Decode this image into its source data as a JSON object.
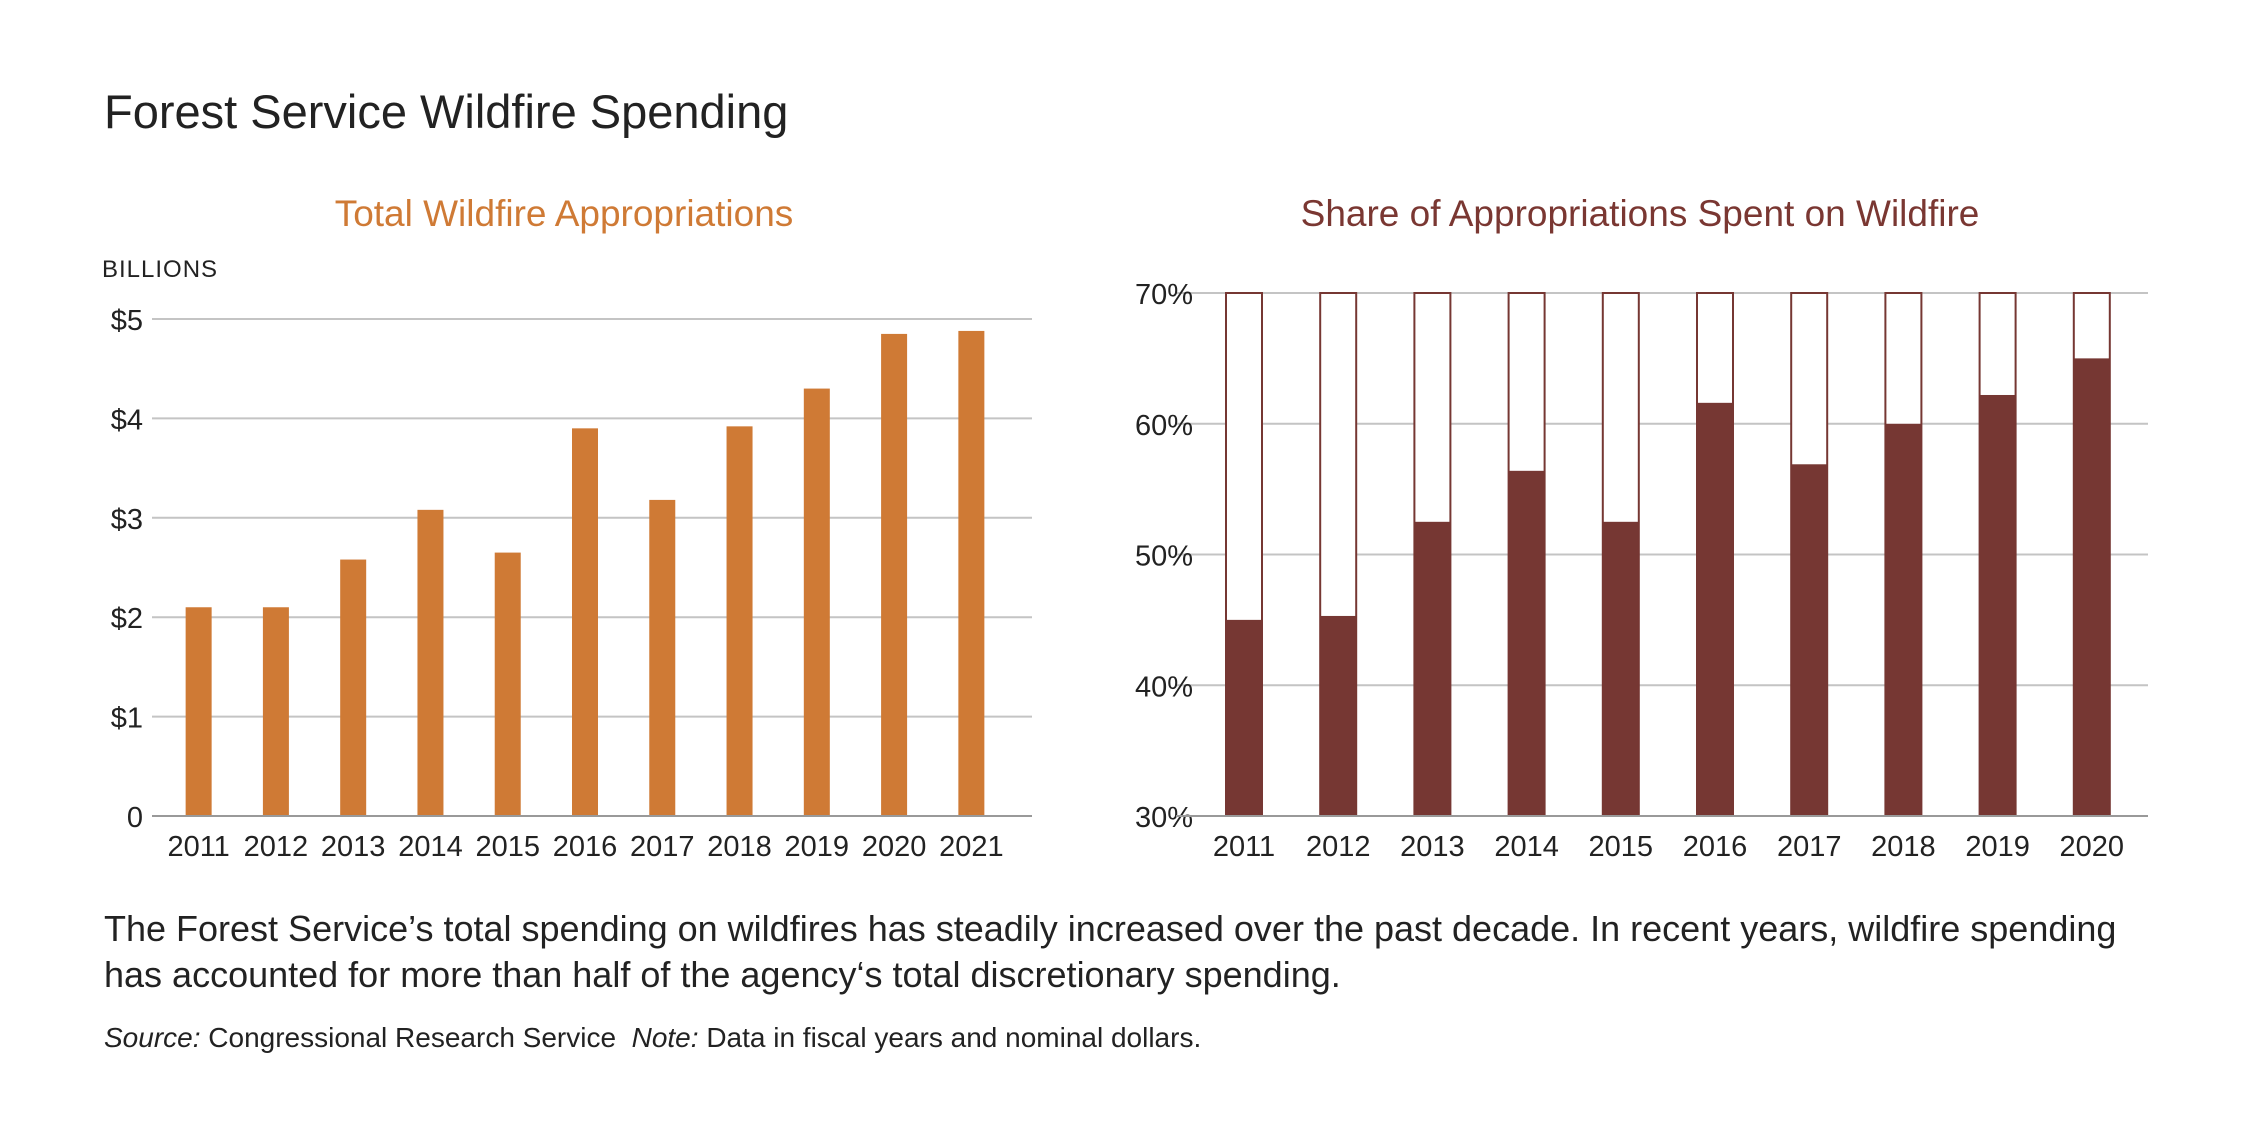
{
  "title": "Forest Service Wildfire Spending",
  "colors": {
    "orange": "#cf7a35",
    "maroon": "#763733",
    "grid": "#c4c4c4"
  },
  "chart_data": [
    {
      "type": "bar",
      "title": "Total Wildfire Appropriations",
      "unit_label": "BILLIONS",
      "categories": [
        "2011",
        "2012",
        "2013",
        "2014",
        "2015",
        "2016",
        "2017",
        "2018",
        "2019",
        "2020",
        "2021"
      ],
      "values": [
        2.1,
        2.1,
        2.58,
        3.08,
        2.65,
        3.9,
        3.18,
        3.92,
        4.3,
        4.85,
        4.88
      ],
      "ylim": [
        0,
        5
      ],
      "yticks": [
        0,
        1,
        2,
        3,
        4,
        5
      ],
      "ytick_labels": [
        "0",
        "$1",
        "$2",
        "$3",
        "$4",
        "$5"
      ],
      "grid": true
    },
    {
      "type": "bar",
      "title": "Share of Appropriations Spent on Wildfire",
      "categories": [
        "2011",
        "2012",
        "2013",
        "2014",
        "2015",
        "2016",
        "2017",
        "2018",
        "2019",
        "2020"
      ],
      "values": [
        45,
        45.3,
        52.5,
        56.4,
        52.5,
        61.6,
        56.9,
        60,
        62.2,
        65
      ],
      "ylim": [
        30,
        70
      ],
      "yticks": [
        30,
        40,
        50,
        60,
        70
      ],
      "ytick_labels": [
        "30%",
        "40%",
        "50%",
        "60%",
        "70%"
      ],
      "grid": true
    }
  ],
  "caption": "The Forest Service’s total spending on wildfires has steadily increased over the past decade. In recent years, wildfire spending has accounted for more than half of the agency‘s total discretionary spending.",
  "source": {
    "source_label": "Source:",
    "source_text": "Congressional Research Service",
    "note_label": "Note:",
    "note_text": "Data in fiscal years and nominal dollars."
  }
}
